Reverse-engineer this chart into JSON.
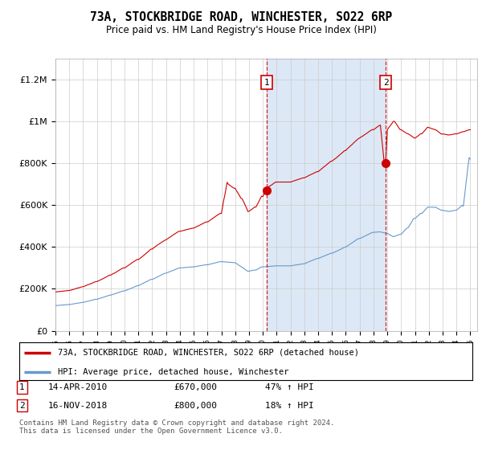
{
  "title": "73A, STOCKBRIDGE ROAD, WINCHESTER, SO22 6RP",
  "subtitle": "Price paid vs. HM Land Registry's House Price Index (HPI)",
  "ylabel_ticks": [
    "£0",
    "£200K",
    "£400K",
    "£600K",
    "£800K",
    "£1M",
    "£1.2M"
  ],
  "ytick_values": [
    0,
    200000,
    400000,
    600000,
    800000,
    1000000,
    1200000
  ],
  "ylim": [
    0,
    1300000
  ],
  "xlim_start": 1995.0,
  "xlim_end": 2025.5,
  "background_color": "#ffffff",
  "plot_bg_color": "#ffffff",
  "grid_color": "#cccccc",
  "red_line_color": "#cc0000",
  "blue_line_color": "#6699cc",
  "shade_color": "#dce8f5",
  "marker1_date": 2010.29,
  "marker1_value": 670000,
  "marker2_date": 2018.88,
  "marker2_value": 800000,
  "legend_label1": "73A, STOCKBRIDGE ROAD, WINCHESTER, SO22 6RP (detached house)",
  "legend_label2": "HPI: Average price, detached house, Winchester",
  "footer": "Contains HM Land Registry data © Crown copyright and database right 2024.\nThis data is licensed under the Open Government Licence v3.0."
}
